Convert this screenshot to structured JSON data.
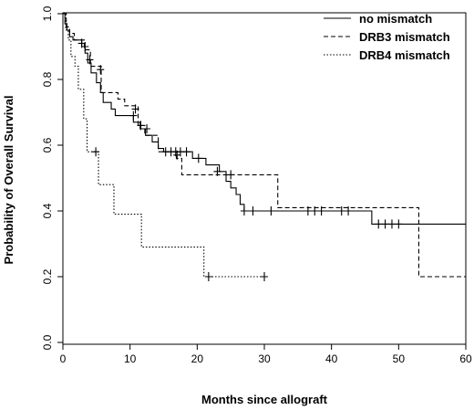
{
  "chart_data": {
    "type": "line",
    "title": "",
    "xlabel": "Months since allograft",
    "ylabel": "Probability of Overall Survival",
    "xlim": [
      0,
      60
    ],
    "ylim": [
      0.0,
      1.0
    ],
    "x_ticks": [
      "0",
      "10",
      "20",
      "30",
      "40",
      "50",
      "60"
    ],
    "y_ticks": [
      "0.0",
      "0.2",
      "0.4",
      "0.6",
      "0.8",
      "1.0"
    ],
    "grid": false,
    "legend_position": "top-right",
    "series": [
      {
        "name": "no mismatch",
        "line_style": "solid",
        "steps": [
          [
            0,
            1.0
          ],
          [
            0.3,
            0.97
          ],
          [
            0.6,
            0.95
          ],
          [
            1.0,
            0.93
          ],
          [
            1.5,
            0.92
          ],
          [
            2.8,
            0.9
          ],
          [
            3.3,
            0.88
          ],
          [
            3.7,
            0.85
          ],
          [
            4.2,
            0.82
          ],
          [
            5.0,
            0.79
          ],
          [
            5.6,
            0.76
          ],
          [
            6.0,
            0.73
          ],
          [
            7.2,
            0.71
          ],
          [
            7.8,
            0.69
          ],
          [
            10.5,
            0.67
          ],
          [
            11.5,
            0.65
          ],
          [
            12.3,
            0.63
          ],
          [
            13.3,
            0.61
          ],
          [
            14.2,
            0.59
          ],
          [
            15.0,
            0.58
          ],
          [
            19.3,
            0.56
          ],
          [
            21.3,
            0.54
          ],
          [
            23.3,
            0.52
          ],
          [
            24.3,
            0.49
          ],
          [
            25.0,
            0.47
          ],
          [
            25.8,
            0.45
          ],
          [
            26.4,
            0.42
          ],
          [
            27.0,
            0.4
          ],
          [
            46.0,
            0.36
          ],
          [
            60.0,
            0.36
          ]
        ],
        "censor_marks": [
          [
            2.8,
            0.91
          ],
          [
            3.3,
            0.9
          ],
          [
            4.0,
            0.86
          ],
          [
            5.6,
            0.83
          ],
          [
            10.5,
            0.69
          ],
          [
            12.5,
            0.65
          ],
          [
            15.3,
            0.58
          ],
          [
            16.1,
            0.58
          ],
          [
            16.8,
            0.58
          ],
          [
            17.5,
            0.58
          ],
          [
            18.4,
            0.58
          ],
          [
            20.2,
            0.56
          ],
          [
            23.0,
            0.52
          ],
          [
            27.0,
            0.4
          ],
          [
            28.3,
            0.4
          ],
          [
            31.0,
            0.4
          ],
          [
            36.5,
            0.4
          ],
          [
            37.5,
            0.4
          ],
          [
            38.5,
            0.4
          ],
          [
            41.5,
            0.4
          ],
          [
            42.5,
            0.4
          ],
          [
            47.0,
            0.36
          ],
          [
            48.0,
            0.36
          ],
          [
            49.0,
            0.36
          ],
          [
            50.0,
            0.36
          ]
        ]
      },
      {
        "name": "DRB3 mismatch",
        "line_style": "dashed",
        "steps": [
          [
            0,
            1.0
          ],
          [
            0.5,
            0.96
          ],
          [
            1.0,
            0.94
          ],
          [
            1.7,
            0.92
          ],
          [
            3.2,
            0.89
          ],
          [
            4.1,
            0.84
          ],
          [
            5.7,
            0.76
          ],
          [
            8.2,
            0.74
          ],
          [
            9.2,
            0.72
          ],
          [
            11.2,
            0.66
          ],
          [
            12.2,
            0.63
          ],
          [
            14.2,
            0.58
          ],
          [
            16.9,
            0.56
          ],
          [
            17.7,
            0.51
          ],
          [
            32.0,
            0.41
          ],
          [
            53.0,
            0.2
          ],
          [
            60.0,
            0.2
          ]
        ],
        "censor_marks": [
          [
            10.8,
            0.71
          ],
          [
            11.6,
            0.66
          ],
          [
            17.0,
            0.57
          ],
          [
            25.0,
            0.51
          ]
        ]
      },
      {
        "name": "DRB4 mismatch",
        "line_style": "dotted",
        "steps": [
          [
            0,
            1.0
          ],
          [
            0.4,
            0.95
          ],
          [
            0.8,
            0.92
          ],
          [
            1.2,
            0.87
          ],
          [
            1.8,
            0.84
          ],
          [
            2.3,
            0.77
          ],
          [
            3.1,
            0.68
          ],
          [
            3.6,
            0.58
          ],
          [
            5.3,
            0.48
          ],
          [
            7.6,
            0.39
          ],
          [
            11.7,
            0.29
          ],
          [
            21.0,
            0.2
          ],
          [
            30.0,
            0.2
          ]
        ],
        "censor_marks": [
          [
            4.9,
            0.58
          ],
          [
            21.7,
            0.2
          ],
          [
            30.0,
            0.2
          ]
        ]
      }
    ]
  }
}
